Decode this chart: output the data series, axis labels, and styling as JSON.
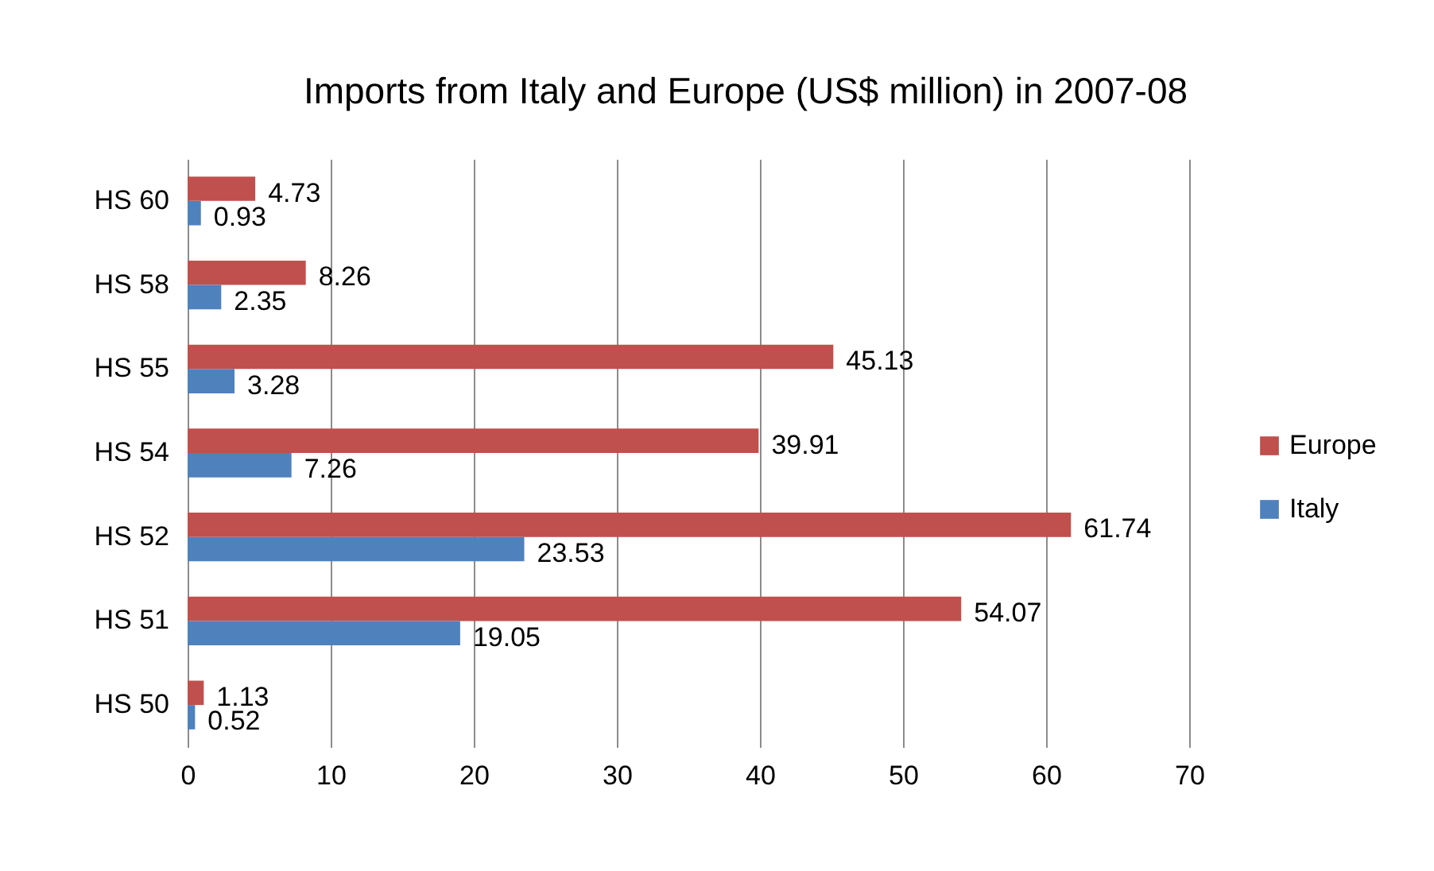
{
  "chart_data": {
    "type": "bar",
    "orientation": "horizontal",
    "title": "Imports from Italy and Europe (US$ million) in 2007-08",
    "categories": [
      "HS 60",
      "HS 58",
      "HS 55",
      "HS 54",
      "HS 52",
      "HS 51",
      "HS 50"
    ],
    "series": [
      {
        "name": "Europe",
        "color": "#c0504d",
        "values": [
          4.73,
          8.26,
          45.13,
          39.91,
          61.74,
          54.07,
          1.13
        ]
      },
      {
        "name": "Italy",
        "color": "#4f81bd",
        "values": [
          0.93,
          2.35,
          3.28,
          7.26,
          23.53,
          19.05,
          0.52
        ]
      }
    ],
    "xlim": [
      0,
      70
    ],
    "xticks": [
      0,
      10,
      20,
      30,
      40,
      50,
      60,
      70
    ],
    "grid": "x",
    "legend": "right",
    "data_labels": true
  }
}
